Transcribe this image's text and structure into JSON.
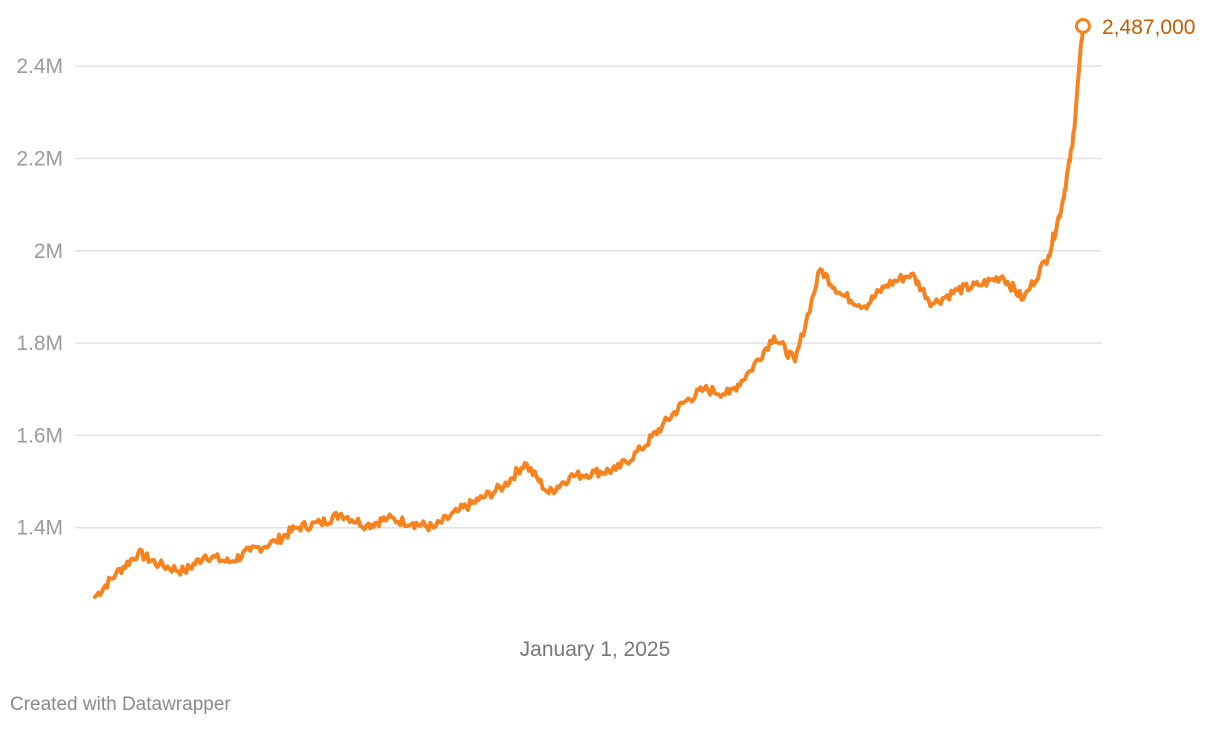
{
  "footer": {
    "credit": "Created with Datawrapper"
  },
  "colors": {
    "line": "#f8831e",
    "end_label": "#c65b00",
    "grid": "#e2e2e2",
    "tick": "#9b9b9b"
  },
  "chart_data": {
    "type": "line",
    "title": "",
    "xlabel": "",
    "ylabel": "",
    "ylim": [
      1200000,
      2500000
    ],
    "y_ticks": [
      1400000,
      1600000,
      1800000,
      2000000,
      2200000,
      2400000
    ],
    "y_tick_labels": [
      "1.4M",
      "1.6M",
      "1.8M",
      "2M",
      "2.2M",
      "2.4M"
    ],
    "x_range": [
      "2024-02-01",
      "2025-12-01"
    ],
    "x_ticks": [
      "2025-01-01"
    ],
    "x_tick_labels": [
      "January 1, 2025"
    ],
    "grid": true,
    "end_label": "2,487,000",
    "series": [
      {
        "x": [
          "2024-02-01",
          "2024-02-15",
          "2024-03-01",
          "2024-03-15",
          "2024-04-01",
          "2024-04-15",
          "2024-05-01",
          "2024-05-15",
          "2024-06-01",
          "2024-06-15",
          "2024-07-01",
          "2024-07-15",
          "2024-08-01",
          "2024-08-15",
          "2024-09-01",
          "2024-09-15",
          "2024-10-01",
          "2024-10-15",
          "2024-11-01",
          "2024-11-15",
          "2024-12-01",
          "2024-12-15",
          "2025-01-01",
          "2025-01-15",
          "2025-02-01",
          "2025-02-15",
          "2025-03-01",
          "2025-03-15",
          "2025-04-01",
          "2025-04-15",
          "2025-05-01",
          "2025-05-15",
          "2025-06-01",
          "2025-06-15",
          "2025-07-01",
          "2025-07-15",
          "2025-08-01",
          "2025-08-15",
          "2025-09-01",
          "2025-09-15",
          "2025-10-01",
          "2025-10-15",
          "2025-11-01",
          "2025-11-10",
          "2025-11-17",
          "2025-11-24"
        ],
        "values": [
          1250000,
          1300000,
          1345000,
          1320000,
          1305000,
          1340000,
          1325000,
          1350000,
          1370000,
          1400000,
          1410000,
          1430000,
          1405000,
          1420000,
          1410000,
          1400000,
          1435000,
          1460000,
          1490000,
          1540000,
          1475000,
          1510000,
          1520000,
          1525000,
          1570000,
          1620000,
          1670000,
          1700000,
          1690000,
          1740000,
          1815000,
          1760000,
          1960000,
          1905000,
          1880000,
          1925000,
          1950000,
          1885000,
          1915000,
          1925000,
          1945000,
          1895000,
          1990000,
          2100000,
          2230000,
          2487000
        ]
      }
    ]
  }
}
